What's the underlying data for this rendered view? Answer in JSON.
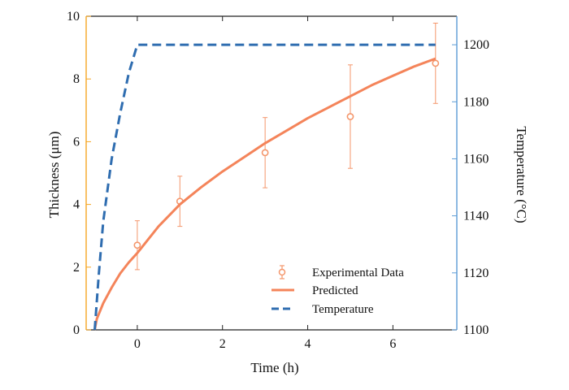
{
  "chart_data": {
    "type": "line",
    "xlabel": "Time (h)",
    "ylabel": "Thickness (μm)",
    "y2label": "Temperature (°C)",
    "xlim": [
      -1.2,
      7.5
    ],
    "ylim": [
      0,
      10
    ],
    "y2lim": [
      1100,
      1210
    ],
    "x_ticks": [
      0,
      2,
      4,
      6
    ],
    "y_ticks": [
      0,
      2,
      4,
      6,
      8,
      10
    ],
    "y2_ticks": [
      1100,
      1120,
      1140,
      1160,
      1180,
      1200
    ],
    "grid": false,
    "legend_position": "bottom-right",
    "colors": {
      "experimental": "#f4966b",
      "predicted": "#f4845a",
      "temperature": "#2f6db0",
      "left_axis": "#f5a623",
      "right_axis": "#5b9bd5",
      "frame": "#222222"
    },
    "series": [
      {
        "name": "Experimental Data",
        "kind": "scatter-errorbar",
        "axis": "left",
        "x": [
          0,
          1,
          3,
          5,
          7
        ],
        "y": [
          2.7,
          4.1,
          5.65,
          6.8,
          8.5
        ],
        "err": [
          0.78,
          0.8,
          1.12,
          1.65,
          1.28
        ]
      },
      {
        "name": "Predicted",
        "kind": "line",
        "axis": "left",
        "x": [
          -1.0,
          -0.95,
          -0.8,
          -0.6,
          -0.4,
          -0.2,
          0,
          0.5,
          1,
          1.5,
          2,
          2.5,
          3,
          3.5,
          4,
          4.5,
          5,
          5.5,
          6,
          6.5,
          7
        ],
        "y": [
          0.0,
          0.35,
          0.85,
          1.35,
          1.8,
          2.15,
          2.45,
          3.3,
          4.0,
          4.55,
          5.05,
          5.5,
          5.95,
          6.35,
          6.75,
          7.1,
          7.45,
          7.8,
          8.1,
          8.4,
          8.65
        ]
      },
      {
        "name": "Temperature",
        "kind": "dashed-line",
        "axis": "right",
        "x": [
          -1.0,
          -0.9,
          -0.8,
          -0.6,
          -0.4,
          -0.2,
          0,
          1,
          2,
          3,
          4,
          5,
          6,
          7
        ],
        "y": [
          1100,
          1120,
          1138,
          1160,
          1176,
          1190,
          1200,
          1200,
          1200,
          1200,
          1200,
          1200,
          1200,
          1200
        ]
      }
    ]
  }
}
